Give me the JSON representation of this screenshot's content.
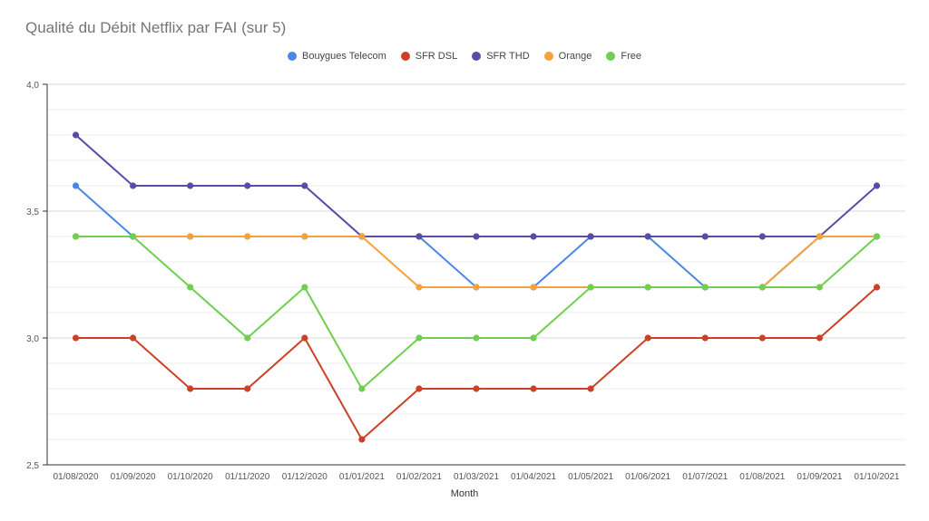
{
  "chart_data": {
    "type": "line",
    "title": "Qualité du Débit Netflix par FAI (sur 5)",
    "xlabel": "Month",
    "ylabel": "",
    "ylim": [
      2.5,
      4.0
    ],
    "yticks": [
      "2,5",
      "3,0",
      "3,5",
      "4,0"
    ],
    "grid": true,
    "legend_position": "top",
    "categories": [
      "01/08/2020",
      "01/09/2020",
      "01/10/2020",
      "01/11/2020",
      "01/12/2020",
      "01/01/2021",
      "01/02/2021",
      "01/03/2021",
      "01/04/2021",
      "01/05/2021",
      "01/06/2021",
      "01/07/2021",
      "01/08/2021",
      "01/09/2021",
      "01/10/2021"
    ],
    "series": [
      {
        "name": "Bouygues Telecom",
        "color": "#4a86e8",
        "values": [
          3.6,
          3.4,
          3.4,
          3.4,
          3.4,
          3.4,
          3.4,
          3.2,
          3.2,
          3.4,
          3.4,
          3.2,
          3.2,
          3.4,
          3.4
        ]
      },
      {
        "name": "SFR DSL",
        "color": "#cc4125",
        "values": [
          3.0,
          3.0,
          2.8,
          2.8,
          3.0,
          2.6,
          2.8,
          2.8,
          2.8,
          2.8,
          3.0,
          3.0,
          3.0,
          3.0,
          3.2
        ]
      },
      {
        "name": "SFR THD",
        "color": "#5b4ba8",
        "values": [
          3.8,
          3.6,
          3.6,
          3.6,
          3.6,
          3.4,
          3.4,
          3.4,
          3.4,
          3.4,
          3.4,
          3.4,
          3.4,
          3.4,
          3.6
        ]
      },
      {
        "name": "Orange",
        "color": "#f6a23b",
        "values": [
          3.4,
          3.4,
          3.4,
          3.4,
          3.4,
          3.4,
          3.2,
          3.2,
          3.2,
          3.2,
          3.2,
          3.2,
          3.2,
          3.4,
          3.4
        ]
      },
      {
        "name": "Free",
        "color": "#6fcf4f",
        "values": [
          3.4,
          3.4,
          3.2,
          3.0,
          3.2,
          2.8,
          3.0,
          3.0,
          3.0,
          3.2,
          3.2,
          3.2,
          3.2,
          3.2,
          3.4
        ]
      }
    ]
  }
}
